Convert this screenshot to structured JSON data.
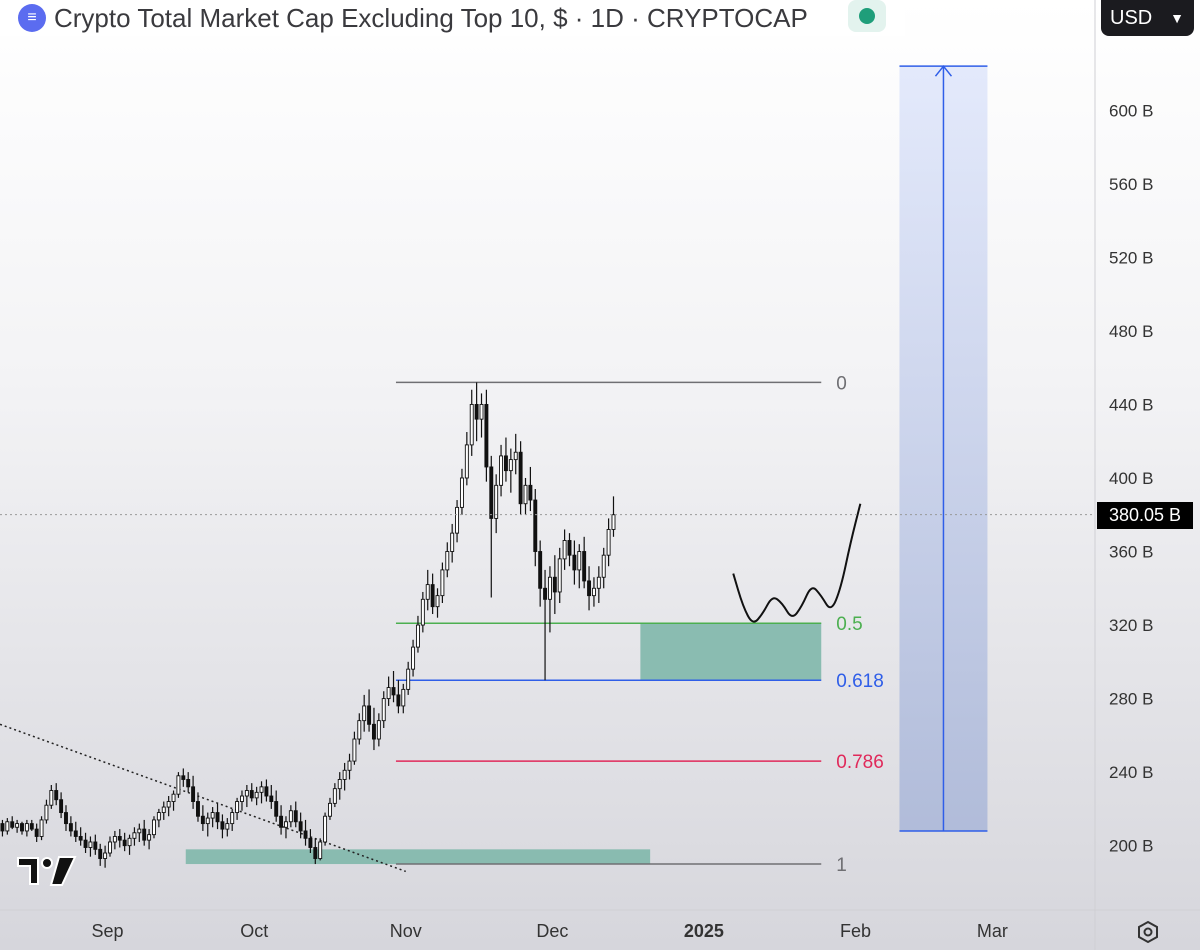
{
  "header": {
    "title": "Crypto Total Market Cap Excluding Top 10, $ · 1D · CRYPTOCAP",
    "currency_label": "USD",
    "logo_icon": "crypto-logo-icon",
    "status_icon": "market-status-icon"
  },
  "colors": {
    "fib_0": "#6f6f73",
    "fib_05": "#4caf50",
    "fib_0618": "#2f5ee8",
    "fib_0786": "#e0295a",
    "fib_1": "#6f6f73",
    "zone": "#7fb7ab",
    "measure": "#c7d4f5",
    "measure_line": "#2f5ee8"
  },
  "chart_data": {
    "type": "candlestick",
    "title": "Crypto Total Market Cap Excluding Top 10, $ · 1D · CRYPTOCAP",
    "y_unit": "B",
    "ylim": [
      165,
      660
    ],
    "y_ticks": [
      "600 B",
      "560 B",
      "520 B",
      "480 B",
      "440 B",
      "400 B",
      "360 B",
      "320 B",
      "280 B",
      "240 B",
      "200 B"
    ],
    "y_tick_values": [
      600,
      560,
      520,
      480,
      440,
      400,
      360,
      320,
      280,
      240,
      200
    ],
    "x_ticks": [
      "Sep",
      "Oct",
      "Nov",
      "Dec",
      "2025",
      "Feb",
      "Mar"
    ],
    "x_tick_dates": [
      "2024-09-01",
      "2024-10-01",
      "2024-11-01",
      "2024-12-01",
      "2025-01-01",
      "2025-02-01",
      "2025-03-01"
    ],
    "x_range": [
      "2024-08-10",
      "2025-03-22"
    ],
    "last_price": 380.05,
    "last_price_label": "380.05 B",
    "fib_levels": [
      {
        "label": "0",
        "value": 452
      },
      {
        "label": "0.5",
        "value": 321
      },
      {
        "label": "0.618",
        "value": 290
      },
      {
        "label": "0.786",
        "value": 246
      },
      {
        "label": "1",
        "value": 190
      }
    ],
    "fib_start": "2024-10-30",
    "fib_end": "2025-01-25",
    "demand_zones": [
      {
        "from": "2024-09-17",
        "to": "2024-12-21",
        "low": 190,
        "high": 198
      },
      {
        "from": "2024-12-19",
        "to": "2025-01-25",
        "low": 290,
        "high": 321
      }
    ],
    "measure_box": {
      "from": "2025-02-10",
      "to": "2025-02-28",
      "low": 208,
      "high": 624
    },
    "trendline": [
      {
        "date": "2024-08-10",
        "value": 266
      },
      {
        "date": "2024-11-01",
        "value": 186
      }
    ],
    "projection": [
      {
        "date": "2025-01-07",
        "value": 348
      },
      {
        "date": "2025-01-09",
        "value": 330
      },
      {
        "date": "2025-01-11",
        "value": 320
      },
      {
        "date": "2025-01-13",
        "value": 326
      },
      {
        "date": "2025-01-15",
        "value": 336
      },
      {
        "date": "2025-01-17",
        "value": 332
      },
      {
        "date": "2025-01-19",
        "value": 323
      },
      {
        "date": "2025-01-21",
        "value": 330
      },
      {
        "date": "2025-01-23",
        "value": 342
      },
      {
        "date": "2025-01-25",
        "value": 336
      },
      {
        "date": "2025-01-27",
        "value": 327
      },
      {
        "date": "2025-01-29",
        "value": 340
      },
      {
        "date": "2025-01-31",
        "value": 365
      },
      {
        "date": "2025-02-02",
        "value": 386
      }
    ],
    "candles_start": "2024-08-10",
    "candles": [
      [
        212,
        214,
        205,
        208
      ],
      [
        208,
        215,
        206,
        213
      ],
      [
        213,
        216,
        209,
        210
      ],
      [
        210,
        214,
        207,
        212
      ],
      [
        212,
        213,
        206,
        208
      ],
      [
        208,
        214,
        205,
        212
      ],
      [
        212,
        214,
        208,
        209
      ],
      [
        209,
        212,
        202,
        205
      ],
      [
        205,
        216,
        203,
        214
      ],
      [
        214,
        225,
        212,
        222
      ],
      [
        222,
        233,
        220,
        230
      ],
      [
        230,
        234,
        222,
        225
      ],
      [
        225,
        229,
        215,
        218
      ],
      [
        218,
        222,
        208,
        212
      ],
      [
        212,
        216,
        205,
        208
      ],
      [
        208,
        213,
        202,
        205
      ],
      [
        205,
        210,
        200,
        203
      ],
      [
        203,
        207,
        196,
        199
      ],
      [
        199,
        205,
        194,
        202
      ],
      [
        202,
        206,
        195,
        198
      ],
      [
        198,
        201,
        189,
        193
      ],
      [
        193,
        200,
        188,
        196
      ],
      [
        196,
        205,
        194,
        202
      ],
      [
        202,
        208,
        198,
        205
      ],
      [
        205,
        209,
        199,
        203
      ],
      [
        203,
        207,
        197,
        200
      ],
      [
        200,
        206,
        195,
        204
      ],
      [
        204,
        210,
        200,
        207
      ],
      [
        207,
        212,
        202,
        209
      ],
      [
        209,
        214,
        200,
        203
      ],
      [
        203,
        209,
        198,
        206
      ],
      [
        206,
        216,
        204,
        214
      ],
      [
        214,
        220,
        210,
        218
      ],
      [
        218,
        224,
        214,
        221
      ],
      [
        221,
        227,
        216,
        224
      ],
      [
        224,
        230,
        219,
        228
      ],
      [
        228,
        240,
        226,
        238
      ],
      [
        238,
        242,
        232,
        236
      ],
      [
        236,
        240,
        229,
        232
      ],
      [
        232,
        238,
        220,
        224
      ],
      [
        224,
        229,
        213,
        216
      ],
      [
        216,
        222,
        208,
        212
      ],
      [
        212,
        218,
        205,
        215
      ],
      [
        215,
        221,
        210,
        218
      ],
      [
        218,
        223,
        209,
        213
      ],
      [
        213,
        217,
        204,
        209
      ],
      [
        209,
        215,
        205,
        212
      ],
      [
        212,
        220,
        208,
        218
      ],
      [
        218,
        226,
        214,
        224
      ],
      [
        224,
        230,
        219,
        227
      ],
      [
        227,
        233,
        221,
        230
      ],
      [
        230,
        234,
        224,
        226
      ],
      [
        226,
        232,
        222,
        229
      ],
      [
        229,
        235,
        223,
        232
      ],
      [
        232,
        236,
        224,
        227
      ],
      [
        227,
        233,
        220,
        224
      ],
      [
        224,
        230,
        213,
        216
      ],
      [
        216,
        222,
        206,
        210
      ],
      [
        210,
        216,
        204,
        213
      ],
      [
        213,
        222,
        210,
        219
      ],
      [
        219,
        224,
        210,
        213
      ],
      [
        213,
        218,
        204,
        208
      ],
      [
        208,
        214,
        200,
        204
      ],
      [
        204,
        209,
        196,
        199
      ],
      [
        199,
        204,
        190,
        193
      ],
      [
        193,
        204,
        192,
        202
      ],
      [
        202,
        218,
        200,
        216
      ],
      [
        216,
        226,
        214,
        223
      ],
      [
        223,
        234,
        221,
        231
      ],
      [
        231,
        240,
        225,
        236
      ],
      [
        236,
        245,
        230,
        241
      ],
      [
        241,
        250,
        236,
        246
      ],
      [
        246,
        262,
        244,
        258
      ],
      [
        258,
        272,
        255,
        268
      ],
      [
        268,
        282,
        262,
        276
      ],
      [
        276,
        285,
        262,
        266
      ],
      [
        266,
        275,
        252,
        258
      ],
      [
        258,
        272,
        254,
        268
      ],
      [
        268,
        284,
        264,
        280
      ],
      [
        280,
        292,
        276,
        286
      ],
      [
        286,
        295,
        278,
        282
      ],
      [
        282,
        290,
        272,
        276
      ],
      [
        276,
        288,
        272,
        285
      ],
      [
        285,
        300,
        282,
        296
      ],
      [
        296,
        312,
        292,
        308
      ],
      [
        308,
        325,
        305,
        320
      ],
      [
        320,
        338,
        316,
        334
      ],
      [
        334,
        350,
        328,
        342
      ],
      [
        342,
        348,
        326,
        330
      ],
      [
        330,
        340,
        324,
        336
      ],
      [
        336,
        354,
        332,
        350
      ],
      [
        350,
        365,
        346,
        360
      ],
      [
        360,
        375,
        354,
        370
      ],
      [
        370,
        388,
        365,
        384
      ],
      [
        384,
        405,
        380,
        400
      ],
      [
        400,
        425,
        396,
        418
      ],
      [
        418,
        448,
        412,
        440
      ],
      [
        440,
        452,
        420,
        432
      ],
      [
        432,
        446,
        422,
        440
      ],
      [
        440,
        448,
        398,
        406
      ],
      [
        406,
        412,
        335,
        378
      ],
      [
        378,
        402,
        370,
        396
      ],
      [
        396,
        418,
        390,
        412
      ],
      [
        412,
        422,
        398,
        404
      ],
      [
        404,
        416,
        392,
        410
      ],
      [
        410,
        424,
        402,
        414
      ],
      [
        414,
        420,
        380,
        386
      ],
      [
        386,
        400,
        380,
        396
      ],
      [
        396,
        406,
        382,
        388
      ],
      [
        388,
        394,
        352,
        360
      ],
      [
        360,
        366,
        330,
        340
      ],
      [
        340,
        350,
        290,
        334
      ],
      [
        334,
        352,
        316,
        346
      ],
      [
        346,
        358,
        326,
        338
      ],
      [
        338,
        362,
        332,
        356
      ],
      [
        356,
        372,
        350,
        366
      ],
      [
        366,
        370,
        352,
        358
      ],
      [
        358,
        366,
        342,
        350
      ],
      [
        350,
        364,
        340,
        360
      ],
      [
        360,
        368,
        340,
        344
      ],
      [
        344,
        352,
        328,
        336
      ],
      [
        336,
        346,
        330,
        340
      ],
      [
        340,
        352,
        332,
        346
      ],
      [
        346,
        362,
        340,
        358
      ],
      [
        358,
        378,
        352,
        372
      ],
      [
        372,
        390,
        368,
        380
      ]
    ]
  }
}
